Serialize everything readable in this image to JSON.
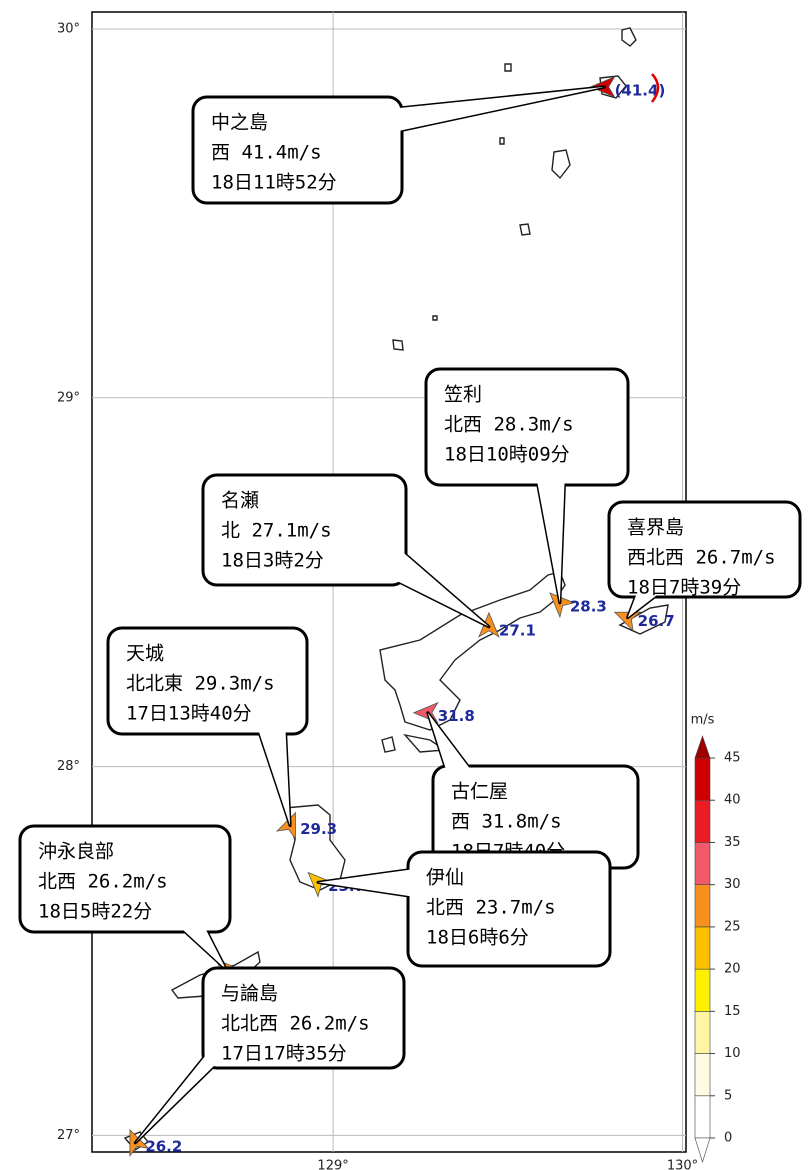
{
  "map": {
    "lonlim": [
      128.31,
      130.01
    ],
    "latlim": [
      26.955,
      30.046
    ],
    "lonticks": [
      {
        "value": 129,
        "label": "129°"
      },
      {
        "value": 130,
        "label": "130°"
      }
    ],
    "latticks": [
      {
        "value": 27,
        "label": "27°"
      },
      {
        "value": 28,
        "label": "28°"
      },
      {
        "value": 29,
        "label": "29°"
      },
      {
        "value": 30,
        "label": "30°"
      }
    ],
    "stations": [
      {
        "name": "中之島",
        "wind": "西 41.4m/s",
        "time": "18日11時52分",
        "lon": 129.777,
        "lat": 29.843,
        "value": 41.4,
        "value_label": "(41.4)"
      },
      {
        "name": "笠利",
        "wind": "北西 28.3m/s",
        "time": "18日10時09分",
        "lon": 129.649,
        "lat": 28.444,
        "value": 28.3
      },
      {
        "name": "名瀬",
        "wind": "北 27.1m/s",
        "time": "18日3時2分",
        "lon": 129.446,
        "lat": 28.379,
        "value": 27.1
      },
      {
        "name": "喜界島",
        "wind": "西北西 26.7m/s",
        "time": "18日7時39分",
        "lon": 129.843,
        "lat": 28.404,
        "value": 26.7
      },
      {
        "name": "古仁屋",
        "wind": "西 31.8m/s",
        "time": "18日7時40分",
        "lon": 129.271,
        "lat": 28.146,
        "value": 31.8
      },
      {
        "name": "天城",
        "wind": "北北東 29.3m/s",
        "time": "17日13時40分",
        "lon": 128.877,
        "lat": 27.84,
        "value": 29.3
      },
      {
        "name": "伊仙",
        "wind": "北西 23.7m/s",
        "time": "18日6時6分",
        "lon": 128.957,
        "lat": 27.686,
        "value": 23.7
      },
      {
        "name": "沖永良部",
        "wind": "北西 26.2m/s",
        "time": "18日5時22分",
        "lon": 128.694,
        "lat": 27.45,
        "value": 26.2
      },
      {
        "name": "与論島",
        "wind": "北北西 26.2m/s",
        "time": "17日17時35分",
        "lon": 128.434,
        "lat": 26.98,
        "value": 26.2
      }
    ],
    "colorbar": {
      "unit": "m/s",
      "ticks": [
        0,
        5,
        10,
        15,
        20,
        25,
        30,
        35,
        40,
        45
      ],
      "colors": [
        "#ffffff",
        "#fffbe3",
        "#fff5a3",
        "#fff000",
        "#fcc000",
        "#f7901e",
        "#f25a6a",
        "#ec1c24",
        "#d00000"
      ],
      "over_color": "#9c0000"
    }
  }
}
